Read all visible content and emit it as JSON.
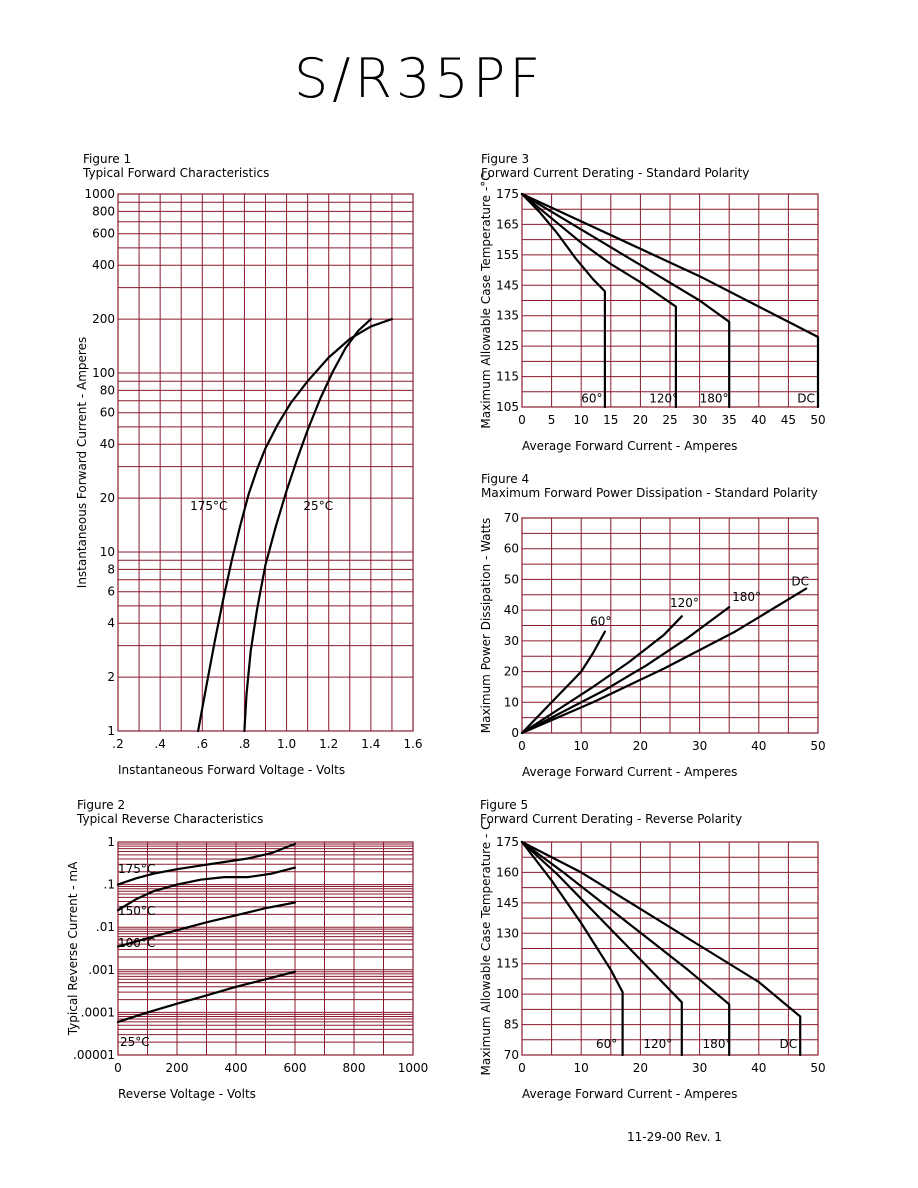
{
  "page": {
    "title": "S/R35PF",
    "footer": "11-29-00   Rev. 1"
  },
  "chart_data": [
    {
      "id": "fig1",
      "type": "line",
      "figure_label": "Figure 1",
      "title": "Typical Forward Characteristics",
      "xlabel": "Instantaneous Forward Voltage - Volts",
      "ylabel": "Instantaneous Forward Current - Amperes",
      "xlim": [
        0.2,
        1.6
      ],
      "ylim": [
        1,
        1000
      ],
      "yscale": "log",
      "x_ticks": [
        0.2,
        0.4,
        0.6,
        0.8,
        1.0,
        1.2,
        1.4,
        1.6
      ],
      "x_tick_labels": [
        ".2",
        ".4",
        ".6",
        ".8",
        "1.0",
        "1.2",
        "1.4",
        "1.6"
      ],
      "y_ticks": [
        1,
        2,
        4,
        6,
        8,
        10,
        20,
        40,
        60,
        80,
        100,
        200,
        400,
        600,
        800,
        1000
      ],
      "y_tick_labels": [
        "1",
        "2",
        "4",
        "6",
        "8",
        "10",
        "20",
        "40",
        "60",
        "80",
        "100",
        "200",
        "400",
        "600",
        "800",
        "1000"
      ],
      "grid": true,
      "series": [
        {
          "name": "175°C",
          "x": [
            0.58,
            0.62,
            0.66,
            0.7,
            0.74,
            0.78,
            0.82,
            0.86,
            0.9,
            0.96,
            1.02,
            1.1,
            1.2,
            1.3,
            1.4,
            1.5
          ],
          "y": [
            1,
            1.8,
            3.2,
            5.5,
            9,
            14,
            21,
            29,
            38,
            52,
            68,
            90,
            122,
            155,
            182,
            200
          ]
        },
        {
          "name": "25°C",
          "x": [
            0.8,
            0.81,
            0.83,
            0.86,
            0.9,
            0.95,
            1.0,
            1.05,
            1.1,
            1.16,
            1.22,
            1.28,
            1.34,
            1.4
          ],
          "y": [
            1,
            1.6,
            2.8,
            4.8,
            8.5,
            14,
            22,
            33,
            48,
            72,
            102,
            138,
            172,
            200
          ]
        }
      ]
    },
    {
      "id": "fig2",
      "type": "line",
      "figure_label": "Figure 2",
      "title": "Typical Reverse Characteristics",
      "xlabel": "Reverse Voltage - Volts",
      "ylabel": "Typical Reverse Current - mA",
      "xlim": [
        0,
        1000
      ],
      "ylim": [
        1e-05,
        1
      ],
      "yscale": "log",
      "x_ticks": [
        0,
        200,
        400,
        600,
        800,
        1000
      ],
      "x_tick_labels": [
        "0",
        "200",
        "400",
        "600",
        "800",
        "1000"
      ],
      "y_ticks": [
        1,
        0.1,
        0.01,
        0.001,
        0.0001,
        1e-05
      ],
      "y_tick_labels": [
        "1",
        ".1",
        ".01",
        ".001",
        ".0001",
        ".00001"
      ],
      "grid": true,
      "series": [
        {
          "name": "175°C",
          "x": [
            0,
            60,
            120,
            200,
            280,
            360,
            440,
            520,
            600
          ],
          "y": [
            0.1,
            0.14,
            0.18,
            0.23,
            0.28,
            0.34,
            0.41,
            0.55,
            0.9
          ]
        },
        {
          "name": "150°C",
          "x": [
            0,
            60,
            120,
            200,
            280,
            360,
            440,
            520,
            600
          ],
          "y": [
            0.025,
            0.045,
            0.07,
            0.1,
            0.13,
            0.15,
            0.15,
            0.18,
            0.25
          ]
        },
        {
          "name": "100°C",
          "x": [
            0,
            100,
            200,
            300,
            400,
            500,
            600
          ],
          "y": [
            0.0035,
            0.0055,
            0.0085,
            0.013,
            0.019,
            0.028,
            0.038
          ]
        },
        {
          "name": "25°C",
          "x": [
            0,
            100,
            200,
            300,
            400,
            500,
            600
          ],
          "y": [
            6e-05,
            0.0001,
            0.00016,
            0.00025,
            0.0004,
            0.0006,
            0.0009
          ]
        }
      ],
      "annotations": [
        "175°C",
        "150°C",
        "100°C",
        "25°C"
      ]
    },
    {
      "id": "fig3",
      "type": "line",
      "figure_label": "Figure 3",
      "title": "Forward Current Derating - Standard Polarity",
      "xlabel": "Average Forward Current - Amperes",
      "ylabel": "Maximum Allowable Case Temperature -°C",
      "xlim": [
        0,
        50
      ],
      "ylim": [
        105,
        175
      ],
      "x_ticks": [
        0,
        5,
        10,
        15,
        20,
        25,
        30,
        35,
        40,
        45,
        50
      ],
      "y_ticks": [
        105,
        115,
        125,
        135,
        145,
        155,
        165,
        175
      ],
      "grid": true,
      "series": [
        {
          "name": "60°",
          "x": [
            0,
            3,
            6,
            9,
            12,
            14,
            14
          ],
          "y": [
            175,
            169,
            162,
            154,
            147,
            143,
            105
          ]
        },
        {
          "name": "120°",
          "x": [
            0,
            5,
            10,
            15,
            20,
            26,
            26
          ],
          "y": [
            175,
            167,
            159,
            152,
            146,
            138,
            105
          ]
        },
        {
          "name": "180°",
          "x": [
            0,
            6,
            12,
            18,
            24,
            30,
            35,
            35
          ],
          "y": [
            175,
            168,
            161,
            154,
            147,
            140,
            133,
            105
          ]
        },
        {
          "name": "DC",
          "x": [
            0,
            10,
            20,
            30,
            40,
            50,
            50
          ],
          "y": [
            175,
            166,
            157,
            148,
            138,
            128,
            105
          ]
        }
      ]
    },
    {
      "id": "fig4",
      "type": "line",
      "figure_label": "Figure 4",
      "title": "Maximum Forward Power Dissipation - Standard Polarity",
      "xlabel": "Average Forward Current - Amperes",
      "ylabel": "Maximum Power Dissipation - Watts",
      "xlim": [
        0,
        50
      ],
      "ylim": [
        0,
        70
      ],
      "x_ticks": [
        0,
        10,
        20,
        30,
        40,
        50
      ],
      "y_ticks": [
        0,
        10,
        20,
        30,
        40,
        50,
        60,
        70
      ],
      "grid": true,
      "series": [
        {
          "name": "60°",
          "x": [
            0,
            4,
            8,
            10,
            12,
            14
          ],
          "y": [
            0,
            8,
            16,
            20,
            26,
            33
          ]
        },
        {
          "name": "120°",
          "x": [
            0,
            6,
            12,
            18,
            24,
            27
          ],
          "y": [
            0,
            7.5,
            15,
            23,
            32,
            38
          ]
        },
        {
          "name": "180°",
          "x": [
            0,
            7,
            14,
            21,
            28,
            35
          ],
          "y": [
            0,
            7,
            14,
            22,
            31,
            41
          ]
        },
        {
          "name": "DC",
          "x": [
            0,
            12,
            24,
            36,
            48
          ],
          "y": [
            0,
            10,
            21,
            33,
            47
          ]
        }
      ]
    },
    {
      "id": "fig5",
      "type": "line",
      "figure_label": "Figure 5",
      "title": "Forward Current Derating - Reverse Polarity",
      "xlabel": "Average Forward Current - Amperes",
      "ylabel": "Maximum Allowable Case Temperature - C",
      "xlim": [
        0,
        50
      ],
      "ylim": [
        70,
        175
      ],
      "x_ticks": [
        0,
        10,
        20,
        30,
        40,
        50
      ],
      "y_ticks": [
        70,
        85,
        100,
        115,
        130,
        145,
        160,
        175
      ],
      "grid": true,
      "series": [
        {
          "name": "60°",
          "x": [
            0,
            5,
            10,
            15,
            17,
            17
          ],
          "y": [
            175,
            156,
            135,
            112,
            101,
            70
          ]
        },
        {
          "name": "120°",
          "x": [
            0,
            6,
            12,
            18,
            24,
            27,
            27
          ],
          "y": [
            175,
            159,
            141,
            123,
            105,
            96,
            70
          ]
        },
        {
          "name": "180°",
          "x": [
            0,
            7,
            14,
            21,
            28,
            35,
            35
          ],
          "y": [
            175,
            160,
            144,
            128,
            112,
            95,
            70
          ]
        },
        {
          "name": "DC",
          "x": [
            0,
            10,
            20,
            30,
            40,
            47,
            47
          ],
          "y": [
            175,
            160,
            142,
            124,
            106,
            89,
            70
          ]
        }
      ]
    }
  ]
}
